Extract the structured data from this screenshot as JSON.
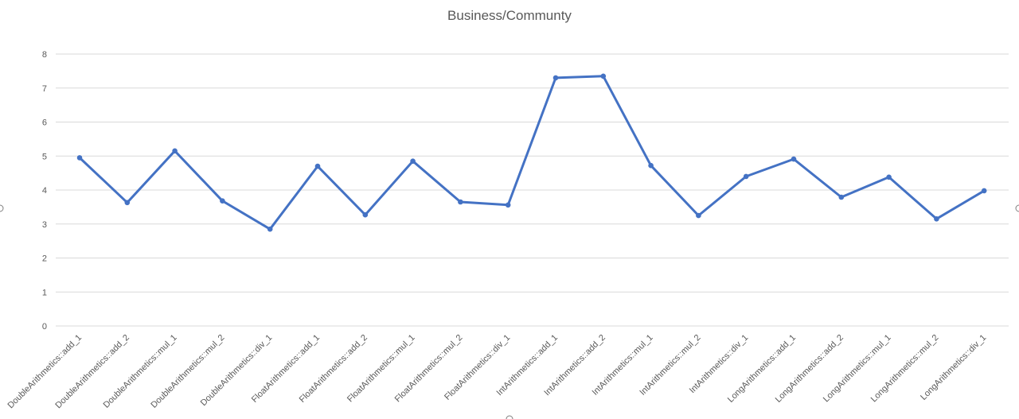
{
  "chart_data": {
    "type": "line",
    "title": "Business/Communty",
    "xlabel": "",
    "ylabel": "",
    "ylim": [
      0,
      8
    ],
    "yticks": [
      "0",
      "1",
      "2",
      "3",
      "4",
      "5",
      "6",
      "7",
      "8"
    ],
    "grid": true,
    "legend": "none",
    "categories": [
      "DoubleArithmetics::add_1",
      "DoubleArithmetics::add_2",
      "DoubleArithmetics::mul_1",
      "DoubleArithmetics::mul_2",
      "DoubleArithmetics::div_1",
      "FloatArithmetics::add_1",
      "FloatArithmetics::add_2",
      "FloatArithmetics::mul_1",
      "FloatArithmetics::mul_2",
      "FloatArithmetics::div_1",
      "IntArithmetics::add_1",
      "IntArithmetics::add_2",
      "IntArithmetics::mul_1",
      "IntArithmetics::mul_2",
      "IntArithmetics::div_1",
      "LongArithmetics::add_1",
      "LongArithmetics::add_2",
      "LongArithmetics::mul_1",
      "LongArithmetics::mul_2",
      "LongArithmetics::div_1"
    ],
    "series": [
      {
        "color": "#4472c4",
        "values": [
          4.95,
          3.63,
          5.15,
          3.68,
          2.85,
          4.7,
          3.27,
          4.85,
          3.65,
          3.56,
          7.3,
          7.35,
          4.72,
          3.25,
          4.4,
          4.91,
          3.79,
          4.38,
          3.15,
          3.98
        ]
      }
    ]
  },
  "colors": {
    "line": "#4472c4",
    "grid": "#d9d9d9",
    "text": "#595959"
  }
}
